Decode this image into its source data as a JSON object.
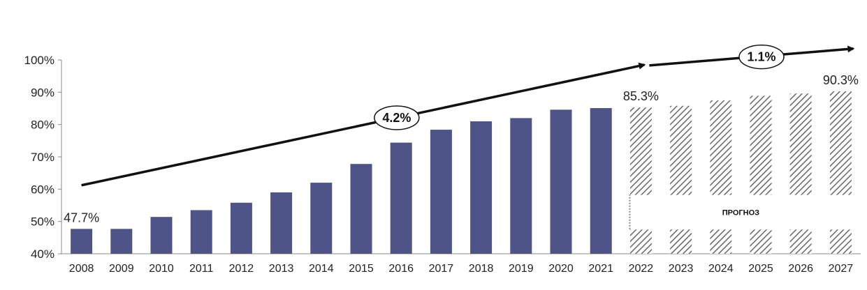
{
  "chart_data": {
    "type": "bar",
    "title": "",
    "xlabel": "",
    "ylabel": "",
    "ylim": [
      40,
      100
    ],
    "yticks": [
      "40%",
      "50%",
      "60%",
      "70%",
      "80%",
      "90%",
      "100%"
    ],
    "grid": false,
    "legend": "none",
    "categories": [
      "2008",
      "2009",
      "2010",
      "2011",
      "2012",
      "2013",
      "2014",
      "2015",
      "2016",
      "2017",
      "2018",
      "2019",
      "2020",
      "2021",
      "2022",
      "2023",
      "2024",
      "2025",
      "2026",
      "2027"
    ],
    "series": [
      {
        "values": [
          47.7,
          47.7,
          51.4,
          53.5,
          55.8,
          59.0,
          62.0,
          67.8,
          74.4,
          78.4,
          81.0,
          82.0,
          84.6,
          85.1,
          85.3,
          85.8,
          87.5,
          88.9,
          89.6,
          90.3
        ],
        "forecast_from": "2022"
      }
    ],
    "colors": {
      "bar": "#4F5488",
      "forecast_hatch": "#666666",
      "arrow": "#111111",
      "axis": "#888888"
    },
    "data_labels": [
      {
        "category": "2008",
        "text": "47.7%"
      },
      {
        "category": "2022",
        "text": "85.3%"
      },
      {
        "category": "2027",
        "text": "90.3%"
      }
    ],
    "annotations": [
      {
        "text": "4.2%",
        "kind": "cagr-arrow",
        "from": "2008",
        "to": "2022"
      },
      {
        "text": "1.1%",
        "kind": "cagr-arrow",
        "from": "2022",
        "to": "2027"
      }
    ],
    "forecast_label": "ПРОГНОЗ"
  }
}
